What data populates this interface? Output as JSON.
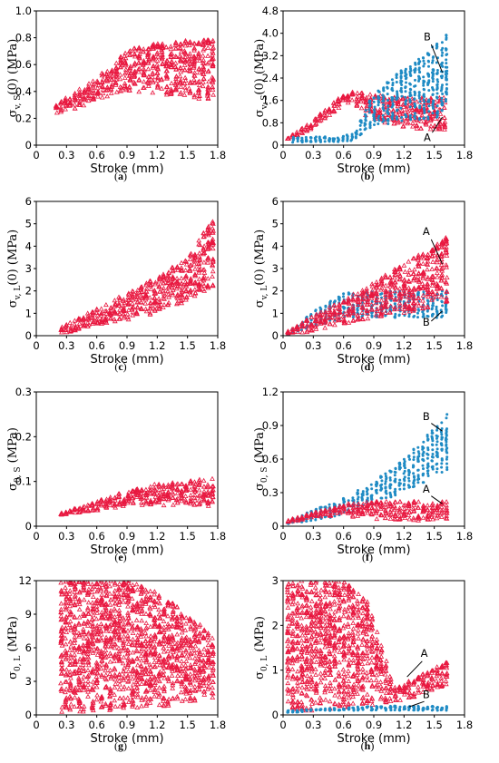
{
  "colors": {
    "red": "#e8173f",
    "blue": "#1f8bc4"
  },
  "chart_data": [
    {
      "id": "a",
      "type": "scatter",
      "caption_letter": "a",
      "ylabel_main": "σ",
      "ylabel_sub": "v, S",
      "ylabel_suffix": "(0) (MPa)",
      "xlabel": "Stroke (mm)",
      "xlim": [
        0,
        1.8
      ],
      "ylim": [
        0,
        1.0
      ],
      "xticks": [
        "0",
        "0.3",
        "0.6",
        "0.9",
        "1.2",
        "1.5",
        "1.8"
      ],
      "yticks": [
        "0",
        "0.2",
        "0.4",
        "0.6",
        "0.8",
        "1.0"
      ],
      "series": [
        {
          "color": "red",
          "marker": "triangle",
          "x": [
            0.2,
            0.5,
            0.8,
            0.9,
            1.2,
            1.5,
            1.75
          ],
          "y_low": [
            0.22,
            0.3,
            0.38,
            0.4,
            0.38,
            0.36,
            0.32
          ],
          "y_high": [
            0.31,
            0.45,
            0.62,
            0.72,
            0.76,
            0.78,
            0.8
          ]
        }
      ],
      "annotations": []
    },
    {
      "id": "b",
      "type": "scatter",
      "caption_letter": "b",
      "ylabel_main": "σ",
      "ylabel_sub": "v, S",
      "ylabel_suffix": "(0) (MPa)",
      "xlabel": "Stroke (mm)",
      "xlim": [
        0,
        1.8
      ],
      "ylim": [
        0,
        4.8
      ],
      "xticks": [
        "0",
        "0.3",
        "0.6",
        "0.9",
        "1.2",
        "1.5",
        "1.8"
      ],
      "yticks": [
        "0",
        "0.8",
        "1.6",
        "2.4",
        "3.2",
        "4.0",
        "4.8"
      ],
      "series": [
        {
          "color": "red",
          "marker": "triangle",
          "x": [
            0.05,
            0.3,
            0.6,
            0.7,
            0.9,
            1.2,
            1.6
          ],
          "y_low": [
            0.2,
            0.6,
            1.4,
            1.5,
            0.8,
            0.6,
            0.5
          ],
          "y_high": [
            0.25,
            0.9,
            1.8,
            1.9,
            1.8,
            1.7,
            1.7
          ]
        },
        {
          "color": "blue",
          "marker": "dot",
          "x": [
            0.1,
            0.4,
            0.7,
            0.85,
            1.1,
            1.4,
            1.62
          ],
          "y_low": [
            0.1,
            0.1,
            0.15,
            0.6,
            0.8,
            0.9,
            1.0
          ],
          "y_high": [
            0.3,
            0.3,
            0.4,
            1.6,
            2.5,
            3.2,
            4.0
          ]
        }
      ],
      "annotations": [
        {
          "text": "B",
          "tx": 1.43,
          "ty": 3.75,
          "lx1": 1.47,
          "ly1": 3.6,
          "lx2": 1.58,
          "ly2": 2.6
        },
        {
          "text": "A",
          "tx": 1.43,
          "ty": 0.15,
          "lx1": 1.48,
          "ly1": 0.45,
          "lx2": 1.58,
          "ly2": 1.0
        }
      ]
    },
    {
      "id": "c",
      "type": "scatter",
      "caption_letter": "c",
      "ylabel_main": "σ",
      "ylabel_sub": "v, L",
      "ylabel_suffix": "(0) (MPa)",
      "xlabel": "Stroke (mm)",
      "xlim": [
        0,
        1.8
      ],
      "ylim": [
        0,
        6
      ],
      "xticks": [
        "0",
        "0.3",
        "0.6",
        "0.9",
        "1.2",
        "1.5",
        "1.8"
      ],
      "yticks": [
        "0",
        "1",
        "2",
        "3",
        "4",
        "5",
        "6"
      ],
      "series": [
        {
          "color": "red",
          "marker": "triangle",
          "x": [
            0.25,
            0.6,
            0.9,
            1.2,
            1.5,
            1.75
          ],
          "y_low": [
            0.1,
            0.4,
            0.7,
            1.0,
            1.5,
            2.2
          ],
          "y_high": [
            0.4,
            1.2,
            1.9,
            2.6,
            3.5,
            5.2
          ]
        }
      ],
      "annotations": []
    },
    {
      "id": "d",
      "type": "scatter",
      "caption_letter": "d",
      "ylabel_main": "σ",
      "ylabel_sub": "v, L",
      "ylabel_suffix": "(0) (MPa)",
      "xlabel": "Stroke (mm)",
      "xlim": [
        0,
        1.8
      ],
      "ylim": [
        0,
        6
      ],
      "xticks": [
        "0",
        "0.3",
        "0.6",
        "0.9",
        "1.2",
        "1.5",
        "1.8"
      ],
      "yticks": [
        "0",
        "1",
        "2",
        "3",
        "4",
        "5",
        "6"
      ],
      "series": [
        {
          "color": "blue",
          "marker": "dot",
          "x": [
            0.05,
            0.3,
            0.6,
            0.9,
            1.2,
            1.62
          ],
          "y_low": [
            0.05,
            0.4,
            0.8,
            0.8,
            0.8,
            0.8
          ],
          "y_high": [
            0.1,
            1.1,
            1.9,
            2.0,
            2.0,
            2.0
          ]
        },
        {
          "color": "red",
          "marker": "triangle",
          "x": [
            0.05,
            0.3,
            0.6,
            0.9,
            1.2,
            1.62
          ],
          "y_low": [
            0.0,
            0.2,
            0.5,
            0.8,
            1.0,
            1.4
          ],
          "y_high": [
            0.2,
            0.9,
            1.6,
            2.4,
            3.2,
            4.4
          ]
        }
      ],
      "annotations": [
        {
          "text": "A",
          "tx": 1.42,
          "ty": 4.5,
          "lx1": 1.47,
          "ly1": 4.3,
          "lx2": 1.58,
          "ly2": 3.2
        },
        {
          "text": "B",
          "tx": 1.42,
          "ty": 0.45,
          "lx1": 1.47,
          "ly1": 0.65,
          "lx2": 1.58,
          "ly2": 1.1
        }
      ]
    },
    {
      "id": "e",
      "type": "scatter",
      "caption_letter": "e",
      "ylabel_main": "σ",
      "ylabel_sub": "0, S",
      "ylabel_suffix": " (MPa)",
      "xlabel": "Stroke (mm)",
      "xlim": [
        0,
        1.8
      ],
      "ylim": [
        0,
        0.3
      ],
      "xticks": [
        "0",
        "0.3",
        "0.6",
        "0.9",
        "1.2",
        "1.5",
        "1.8"
      ],
      "yticks": [
        "0",
        "0.1",
        "0.2",
        "0.3"
      ],
      "series": [
        {
          "color": "red",
          "marker": "triangle",
          "x": [
            0.25,
            0.6,
            0.9,
            1.2,
            1.5,
            1.75
          ],
          "y_low": [
            0.025,
            0.035,
            0.045,
            0.045,
            0.045,
            0.045
          ],
          "y_high": [
            0.03,
            0.055,
            0.08,
            0.095,
            0.1,
            0.11
          ]
        }
      ],
      "annotations": []
    },
    {
      "id": "f",
      "type": "scatter",
      "caption_letter": "f",
      "ylabel_main": "σ",
      "ylabel_sub": "0, S",
      "ylabel_suffix": " (MPa)",
      "xlabel": "Stroke (mm)",
      "xlim": [
        0,
        1.8
      ],
      "ylim": [
        0,
        1.2
      ],
      "xticks": [
        "0",
        "0.3",
        "0.6",
        "0.9",
        "1.2",
        "1.5",
        "1.8"
      ],
      "yticks": [
        "0",
        "0.3",
        "0.6",
        "0.9",
        "1.2"
      ],
      "series": [
        {
          "color": "blue",
          "marker": "dot",
          "x": [
            0.05,
            0.3,
            0.6,
            0.9,
            1.2,
            1.62
          ],
          "y_low": [
            0.02,
            0.05,
            0.1,
            0.2,
            0.3,
            0.5
          ],
          "y_high": [
            0.05,
            0.15,
            0.25,
            0.4,
            0.6,
            1.0
          ]
        },
        {
          "color": "red",
          "marker": "triangle",
          "x": [
            0.05,
            0.3,
            0.6,
            0.9,
            1.2,
            1.62
          ],
          "y_low": [
            0.03,
            0.08,
            0.1,
            0.05,
            0.05,
            0.05
          ],
          "y_high": [
            0.05,
            0.12,
            0.2,
            0.22,
            0.22,
            0.22
          ]
        }
      ],
      "annotations": [
        {
          "text": "B",
          "tx": 1.42,
          "ty": 0.95,
          "lx1": 1.47,
          "ly1": 0.92,
          "lx2": 1.58,
          "ly2": 0.85
        },
        {
          "text": "A",
          "tx": 1.42,
          "ty": 0.3,
          "lx1": 1.47,
          "ly1": 0.27,
          "lx2": 1.58,
          "ly2": 0.2
        }
      ]
    },
    {
      "id": "g",
      "type": "scatter",
      "caption_letter": "g",
      "ylabel_main": "σ",
      "ylabel_sub": "0, L",
      "ylabel_suffix": " (MPa)",
      "xlabel": "Stroke (mm)",
      "xlim": [
        0,
        1.8
      ],
      "ylim": [
        0,
        12
      ],
      "xticks": [
        "0",
        "0.3",
        "0.6",
        "0.9",
        "1.2",
        "1.5",
        "1.8"
      ],
      "yticks": [
        "0",
        "3",
        "6",
        "9",
        "12"
      ],
      "series": [
        {
          "color": "red",
          "marker": "triangle",
          "x": [
            0.25,
            0.6,
            0.9,
            1.2,
            1.5,
            1.75
          ],
          "y_low": [
            0.2,
            0.3,
            0.5,
            0.7,
            1.0,
            1.5
          ],
          "y_high": [
            12,
            12,
            12,
            11,
            9,
            7
          ]
        }
      ],
      "annotations": []
    },
    {
      "id": "h",
      "type": "scatter",
      "caption_letter": "h",
      "ylabel_main": "σ",
      "ylabel_sub": "0, L",
      "ylabel_suffix": " (MPa)",
      "xlabel": "Stroke (mm)",
      "xlim": [
        0,
        1.8
      ],
      "ylim": [
        0,
        3
      ],
      "xticks": [
        "0",
        "0.3",
        "0.6",
        "0.9",
        "1.2",
        "1.5",
        "1.8"
      ],
      "yticks": [
        "0",
        "1",
        "2",
        "3"
      ],
      "series": [
        {
          "color": "red",
          "marker": "triangle",
          "x": [
            0.05,
            0.3,
            0.6,
            0.85,
            1.1,
            1.3,
            1.62
          ],
          "y_low": [
            0.05,
            0.1,
            0.15,
            0.2,
            0.3,
            0.4,
            0.6
          ],
          "y_high": [
            3.0,
            3.0,
            3.0,
            2.5,
            0.6,
            0.8,
            1.2
          ]
        },
        {
          "color": "blue",
          "marker": "dot",
          "x": [
            0.05,
            0.5,
            0.9,
            1.2,
            1.62
          ],
          "y_low": [
            0.05,
            0.1,
            0.1,
            0.1,
            0.1
          ],
          "y_high": [
            0.1,
            0.15,
            0.2,
            0.2,
            0.2
          ]
        }
      ],
      "annotations": [
        {
          "text": "A",
          "tx": 1.4,
          "ty": 1.3,
          "lx1": 1.38,
          "ly1": 1.2,
          "lx2": 1.23,
          "ly2": 0.85
        },
        {
          "text": "B",
          "tx": 1.42,
          "ty": 0.38,
          "lx1": 1.4,
          "ly1": 0.3,
          "lx2": 1.25,
          "ly2": 0.18
        }
      ]
    }
  ]
}
